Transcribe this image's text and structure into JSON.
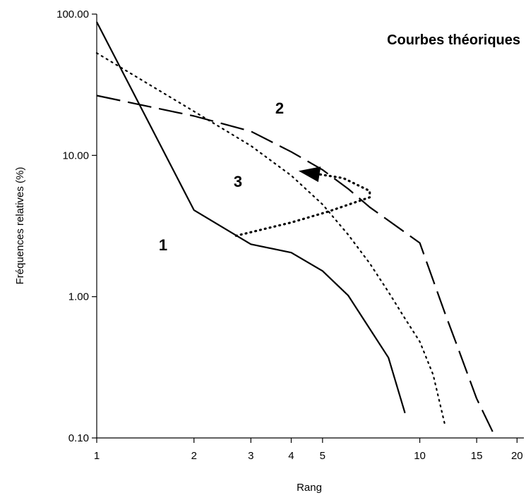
{
  "chart_data": {
    "type": "line",
    "title": "Courbes théoriques",
    "xlabel": "Rang",
    "ylabel": "Fréquences relatives (%)",
    "x_scale": "log",
    "y_scale": "log",
    "xlim": [
      1,
      21
    ],
    "ylim": [
      0.1,
      100
    ],
    "x_ticks": [
      1,
      2,
      3,
      4,
      5,
      10,
      15,
      20
    ],
    "x_tick_labels": [
      "1",
      "2",
      "3",
      "4",
      "5",
      "10",
      "15",
      "20"
    ],
    "y_ticks": [
      0.1,
      1,
      10,
      100
    ],
    "y_tick_labels": [
      "0.10",
      "1.00",
      "10.00",
      "100.00"
    ],
    "grid": false,
    "legend": "none",
    "series": [
      {
        "label": "1",
        "style": "solid",
        "color": "#000000",
        "x": [
          1,
          2,
          3,
          4,
          5,
          6,
          8,
          9
        ],
        "y": [
          88,
          4.1,
          2.35,
          2.05,
          1.52,
          1.02,
          0.37,
          0.15
        ]
      },
      {
        "label": "2",
        "style": "dashed",
        "color": "#000000",
        "x": [
          1,
          2,
          3,
          4,
          5,
          6,
          7,
          10,
          12,
          13,
          15,
          17
        ],
        "y": [
          26.5,
          19,
          14.8,
          10.6,
          7.9,
          5.8,
          4.3,
          2.4,
          0.75,
          0.46,
          0.19,
          0.105
        ]
      },
      {
        "label": "3",
        "style": "dotted",
        "color": "#000000",
        "x": [
          1,
          2,
          3,
          4,
          5,
          6,
          7,
          8,
          9,
          10,
          11,
          12
        ],
        "y": [
          53,
          20.5,
          11.7,
          7.2,
          4.5,
          2.75,
          1.72,
          1.08,
          0.7,
          0.48,
          0.28,
          0.12
        ]
      }
    ],
    "annotations": [
      {
        "type": "dotted-arrow",
        "path_x": [
          2.7,
          4.0,
          5.2,
          7.0,
          7.0,
          5.8,
          4.3
        ],
        "path_y": [
          2.7,
          3.35,
          4.0,
          5.05,
          5.6,
          6.9,
          7.7
        ]
      }
    ]
  }
}
